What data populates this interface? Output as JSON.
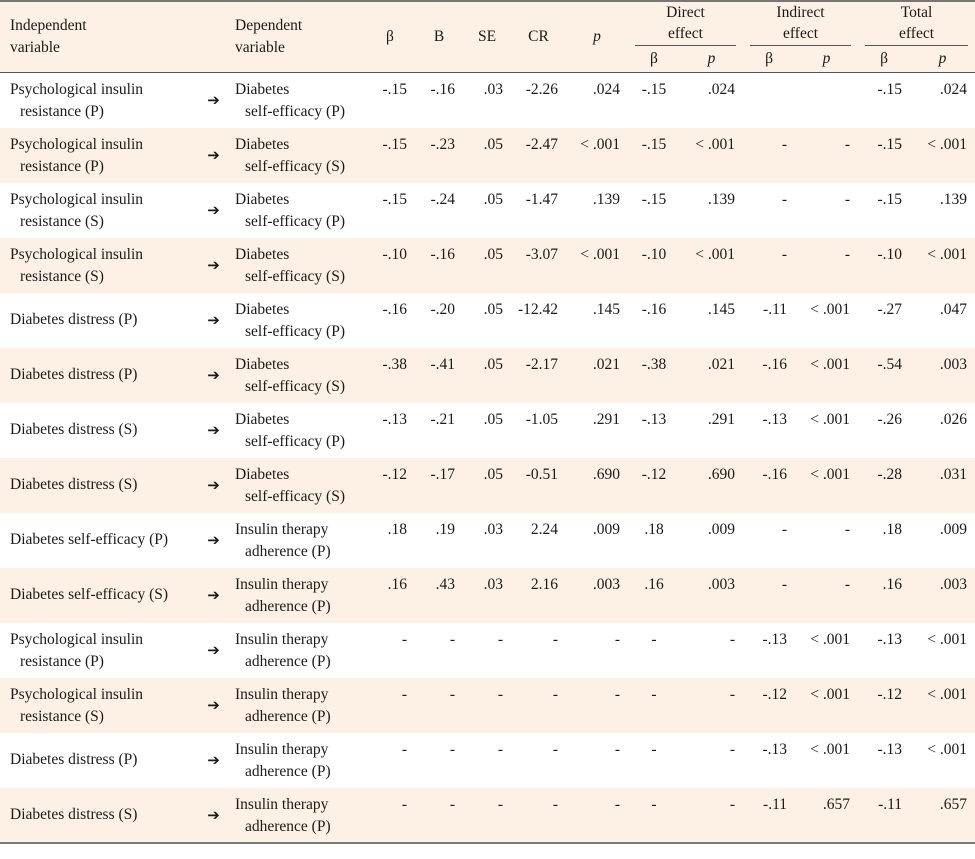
{
  "headers": {
    "independent": [
      "Independent",
      "variable"
    ],
    "dependent": [
      "Dependent",
      "variable"
    ],
    "beta": "β",
    "b": "B",
    "se": "SE",
    "cr": "CR",
    "p": "p",
    "direct": [
      "Direct",
      "effect"
    ],
    "indirect": [
      "Indirect",
      "effect"
    ],
    "total": [
      "Total",
      "effect"
    ],
    "sub_beta": "β",
    "sub_p": "p"
  },
  "arrow": "➔",
  "rows": [
    {
      "indep": [
        "Psychological insulin",
        "resistance (P)"
      ],
      "dep": [
        "Diabetes",
        "self-efficacy (P)"
      ],
      "beta": "-.15",
      "b": "-.16",
      "se": ".03",
      "cr": "-2.26",
      "p": ".024",
      "d_beta": "-.15",
      "d_p": ".024",
      "i_beta": "",
      "i_p": "",
      "t_beta": "-.15",
      "t_p": ".024"
    },
    {
      "indep": [
        "Psychological insulin",
        "resistance (P)"
      ],
      "dep": [
        "Diabetes",
        "self-efficacy (S)"
      ],
      "beta": "-.15",
      "b": "-.23",
      "se": ".05",
      "cr": "-2.47",
      "p": "< .001",
      "d_beta": "-.15",
      "d_p": "< .001",
      "i_beta": "-",
      "i_p": "-",
      "t_beta": "-.15",
      "t_p": "< .001"
    },
    {
      "indep": [
        "Psychological insulin",
        "resistance (S)"
      ],
      "dep": [
        "Diabetes",
        "self-efficacy (P)"
      ],
      "beta": "-.15",
      "b": "-.24",
      "se": ".05",
      "cr": "-1.47",
      "p": ".139",
      "d_beta": "-.15",
      "d_p": ".139",
      "i_beta": "-",
      "i_p": "-",
      "t_beta": "-.15",
      "t_p": ".139"
    },
    {
      "indep": [
        "Psychological insulin",
        "resistance (S)"
      ],
      "dep": [
        "Diabetes",
        "self-efficacy (S)"
      ],
      "beta": "-.10",
      "b": "-.16",
      "se": ".05",
      "cr": "-3.07",
      "p": "< .001",
      "d_beta": "-.10",
      "d_p": "< .001",
      "i_beta": "-",
      "i_p": "-",
      "t_beta": "-.10",
      "t_p": "< .001"
    },
    {
      "indep": [
        "Diabetes distress (P)"
      ],
      "dep": [
        "Diabetes",
        "self-efficacy (P)"
      ],
      "beta": "-.16",
      "b": "-.20",
      "se": ".05",
      "cr": "-12.42",
      "p": ".145",
      "d_beta": "-.16",
      "d_p": ".145",
      "i_beta": "-.11",
      "i_p": "< .001",
      "t_beta": "-.27",
      "t_p": ".047"
    },
    {
      "indep": [
        "Diabetes distress (P)"
      ],
      "dep": [
        "Diabetes",
        "self-efficacy (S)"
      ],
      "beta": "-.38",
      "b": "-.41",
      "se": ".05",
      "cr": "-2.17",
      "p": ".021",
      "d_beta": "-.38",
      "d_p": ".021",
      "i_beta": "-.16",
      "i_p": "< .001",
      "t_beta": "-.54",
      "t_p": ".003"
    },
    {
      "indep": [
        "Diabetes distress (S)"
      ],
      "dep": [
        "Diabetes",
        "self-efficacy (P)"
      ],
      "beta": "-.13",
      "b": "-.21",
      "se": ".05",
      "cr": "-1.05",
      "p": ".291",
      "d_beta": "-.13",
      "d_p": ".291",
      "i_beta": "-.13",
      "i_p": "< .001",
      "t_beta": "-.26",
      "t_p": ".026"
    },
    {
      "indep": [
        "Diabetes distress (S)"
      ],
      "dep": [
        "Diabetes",
        "self-efficacy (S)"
      ],
      "beta": "-.12",
      "b": "-.17",
      "se": ".05",
      "cr": "-0.51",
      "p": ".690",
      "d_beta": "-.12",
      "d_p": ".690",
      "i_beta": "-.16",
      "i_p": "< .001",
      "t_beta": "-.28",
      "t_p": ".031"
    },
    {
      "indep": [
        "Diabetes self-efficacy (P)"
      ],
      "dep": [
        "Insulin therapy",
        "adherence (P)"
      ],
      "beta": ".18",
      "b": ".19",
      "se": ".03",
      "cr": "2.24",
      "p": ".009",
      "d_beta": ".18",
      "d_p": ".009",
      "i_beta": "-",
      "i_p": "-",
      "t_beta": ".18",
      "t_p": ".009"
    },
    {
      "indep": [
        "Diabetes self-efficacy (S)"
      ],
      "dep": [
        "Insulin therapy",
        "adherence (P)"
      ],
      "beta": ".16",
      "b": ".43",
      "se": ".03",
      "cr": "2.16",
      "p": ".003",
      "d_beta": ".16",
      "d_p": ".003",
      "i_beta": "-",
      "i_p": "-",
      "t_beta": ".16",
      "t_p": ".003"
    },
    {
      "indep": [
        "Psychological insulin",
        "resistance (P)"
      ],
      "dep": [
        "Insulin therapy",
        "adherence (P)"
      ],
      "beta": "-",
      "b": "-",
      "se": "-",
      "cr": "-",
      "p": "-",
      "d_beta": "-",
      "d_p": "-",
      "i_beta": "-.13",
      "i_p": "< .001",
      "t_beta": "-.13",
      "t_p": "< .001"
    },
    {
      "indep": [
        "Psychological insulin",
        "resistance (S)"
      ],
      "dep": [
        "Insulin therapy",
        "adherence (P)"
      ],
      "beta": "-",
      "b": "-",
      "se": "-",
      "cr": "-",
      "p": "-",
      "d_beta": "-",
      "d_p": "-",
      "i_beta": "-.12",
      "i_p": "< .001",
      "t_beta": "-.12",
      "t_p": "< .001"
    },
    {
      "indep": [
        "Diabetes distress (P)"
      ],
      "dep": [
        "Insulin therapy",
        "adherence (P)"
      ],
      "beta": "-",
      "b": "-",
      "se": "-",
      "cr": "-",
      "p": "-",
      "d_beta": "-",
      "d_p": "-",
      "i_beta": "-.13",
      "i_p": "< .001",
      "t_beta": "-.13",
      "t_p": "< .001"
    },
    {
      "indep": [
        "Diabetes distress (S)"
      ],
      "dep": [
        "Insulin therapy",
        "adherence (P)"
      ],
      "beta": "-",
      "b": "-",
      "se": "-",
      "cr": "-",
      "p": "-",
      "d_beta": "-",
      "d_p": "-",
      "i_beta": "-.11",
      "i_p": ".657",
      "t_beta": "-.11",
      "t_p": ".657"
    }
  ]
}
